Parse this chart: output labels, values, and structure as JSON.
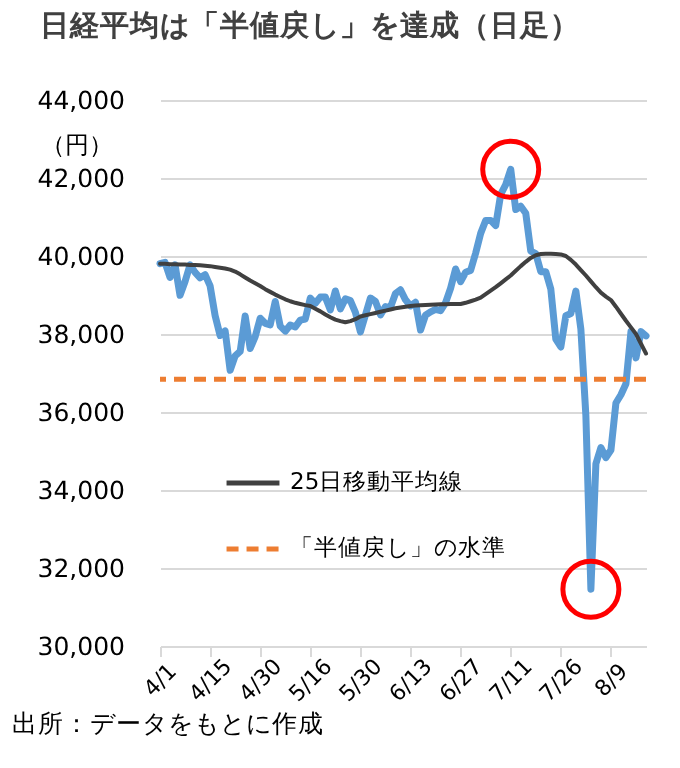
{
  "chart_data": {
    "type": "line",
    "title": "日経平均は「半値戻し」を達成（日足）",
    "ylabel": "（円）",
    "annotations": [
      "出所：データをもとに作成"
    ],
    "categories": [
      "4/1",
      null,
      null,
      null,
      null,
      null,
      null,
      null,
      null,
      null,
      "4/15",
      null,
      null,
      null,
      null,
      null,
      null,
      null,
      null,
      null,
      "4/30",
      null,
      null,
      null,
      null,
      null,
      null,
      null,
      null,
      null,
      "5/16",
      null,
      null,
      null,
      null,
      null,
      null,
      null,
      null,
      null,
      "5/30",
      null,
      null,
      null,
      null,
      null,
      null,
      null,
      null,
      null,
      "6/13",
      null,
      null,
      null,
      null,
      null,
      null,
      null,
      null,
      null,
      "6/27",
      null,
      null,
      null,
      null,
      null,
      null,
      null,
      null,
      null,
      "7/11",
      null,
      null,
      null,
      null,
      null,
      null,
      null,
      null,
      null,
      "7/26",
      null,
      null,
      null,
      null,
      null,
      null,
      null,
      null,
      null,
      "8/9",
      null,
      null,
      null,
      null,
      null,
      null,
      null
    ],
    "series": [
      {
        "color": "#5b9bd5",
        "values": [
          39803,
          39838,
          39451,
          39773,
          38992,
          39347,
          39773,
          39581,
          39442,
          39523,
          39232,
          38471,
          37961,
          38079,
          37068,
          37438,
          37552,
          38460,
          37628,
          37934,
          38405,
          38274,
          38236,
          38835,
          38202,
          38073,
          38229,
          38179,
          38356,
          38385,
          38920,
          38787,
          38946,
          38946,
          38617,
          39103,
          38646,
          38900,
          38855,
          38556,
          38054,
          38487,
          38923,
          38837,
          38490,
          38703,
          38683,
          39038,
          39134,
          38876,
          38720,
          38814,
          38102,
          38482,
          38570,
          38633,
          38596,
          38804,
          39173,
          39667,
          39341,
          39583,
          39631,
          40074,
          40580,
          40913,
          40912,
          40780,
          41580,
          41831,
          42224,
          41190,
          41275,
          41097,
          40126,
          40063,
          39599,
          39594,
          39154,
          37869,
          37667,
          38468,
          38525,
          39101,
          38126,
          35909,
          31458,
          34675,
          35089,
          34831,
          35025,
          36232,
          36442,
          36726,
          38062,
          37388,
          38062,
          37951
        ]
      },
      {
        "name": "25日移動平均線",
        "color": "#404040",
        "values": [
          39800,
          39800,
          39790,
          39790,
          39780,
          39780,
          39770,
          39770,
          39760,
          39750,
          39740,
          39720,
          39700,
          39680,
          39650,
          39600,
          39530,
          39450,
          39370,
          39300,
          39230,
          39150,
          39080,
          39010,
          38950,
          38890,
          38840,
          38800,
          38770,
          38740,
          38720,
          38650,
          38580,
          38500,
          38430,
          38370,
          38330,
          38300,
          38330,
          38380,
          38450,
          38480,
          38510,
          38540,
          38570,
          38600,
          38630,
          38660,
          38680,
          38700,
          38720,
          38730,
          38740,
          38745,
          38750,
          38755,
          38760,
          38765,
          38770,
          38770,
          38770,
          38800,
          38840,
          38880,
          38930,
          39020,
          39110,
          39200,
          39300,
          39400,
          39500,
          39620,
          39740,
          39850,
          39950,
          40020,
          40050,
          40060,
          40060,
          40050,
          40040,
          40000,
          39900,
          39780,
          39640,
          39500,
          39350,
          39200,
          39060,
          38960,
          38870,
          38700,
          38520,
          38340,
          38170,
          38000,
          37750,
          37500
        ]
      }
    ],
    "ref_lines": [
      {
        "axis": "y",
        "value": 36840,
        "label": "「半値戻し」の水準",
        "color": "#ed7d31",
        "line_style": "dashed"
      }
    ],
    "ylim": [
      30000,
      44000
    ],
    "yticks": [
      {
        "value": 30000,
        "label": "30,000"
      },
      {
        "value": 32000,
        "label": "32,000"
      },
      {
        "value": 34000,
        "label": "34,000"
      },
      {
        "value": 36000,
        "label": "36,000"
      },
      {
        "value": 38000,
        "label": "38,000"
      },
      {
        "value": 40000,
        "label": "40,000"
      },
      {
        "value": 42000,
        "label": "42,000"
      },
      {
        "value": 44000,
        "label": "44,000"
      }
    ],
    "grid": "y",
    "legend": "bottom left"
  }
}
